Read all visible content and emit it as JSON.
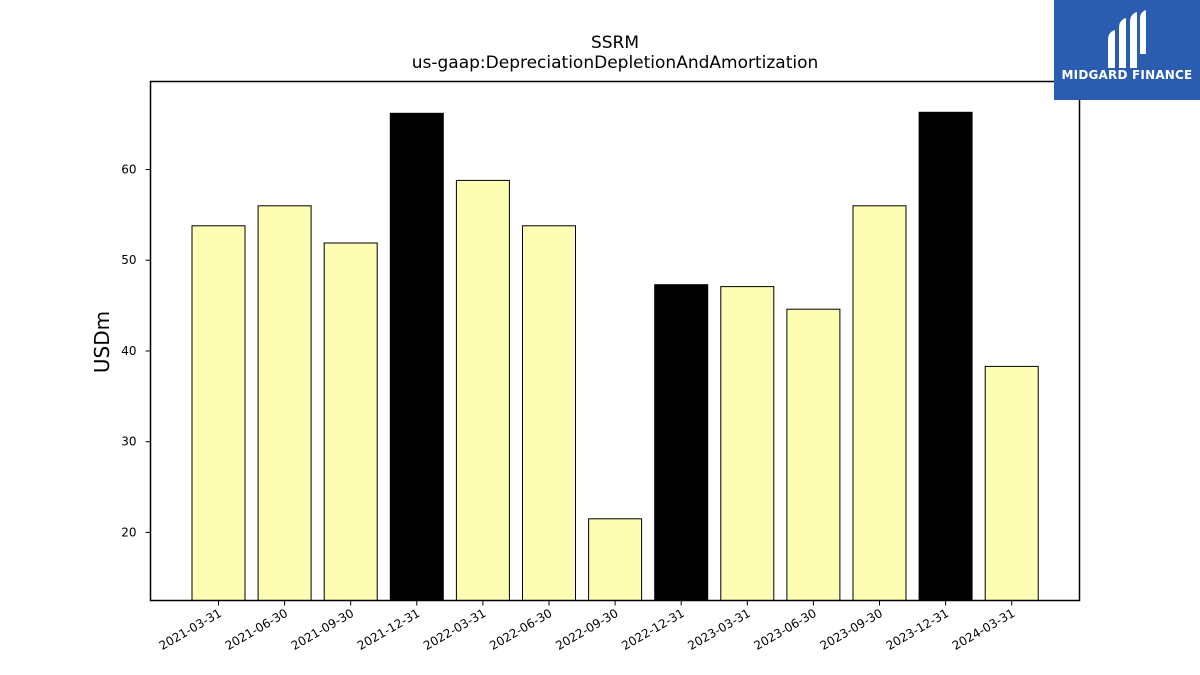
{
  "chart_data": {
    "type": "bar",
    "title": "SSRM",
    "subtitle": "us-gaap:DepreciationDepletionAndAmortization",
    "xlabel": "",
    "ylabel": "USDm",
    "categories": [
      "2021-03-31",
      "2021-06-30",
      "2021-09-30",
      "2021-12-31",
      "2022-03-31",
      "2022-06-30",
      "2022-09-30",
      "2022-12-31",
      "2023-03-31",
      "2023-06-30",
      "2023-09-30",
      "2023-12-31",
      "2024-03-31"
    ],
    "values": [
      53.8,
      56.0,
      51.9,
      66.2,
      58.8,
      53.8,
      21.5,
      47.3,
      47.1,
      44.6,
      56.0,
      66.3,
      38.3
    ],
    "highlight": [
      false,
      false,
      false,
      true,
      false,
      false,
      false,
      true,
      false,
      false,
      false,
      true,
      false
    ],
    "ylim": [
      12.5,
      69.7
    ],
    "yticks": [
      20,
      30,
      40,
      50,
      60
    ],
    "grid": false,
    "colors": {
      "bar": "#fdfdb4",
      "highlight": "#000000",
      "edge": "#000000"
    }
  },
  "logo": {
    "text": "MIDGARD FINANCE",
    "background": "#2a5db0"
  }
}
